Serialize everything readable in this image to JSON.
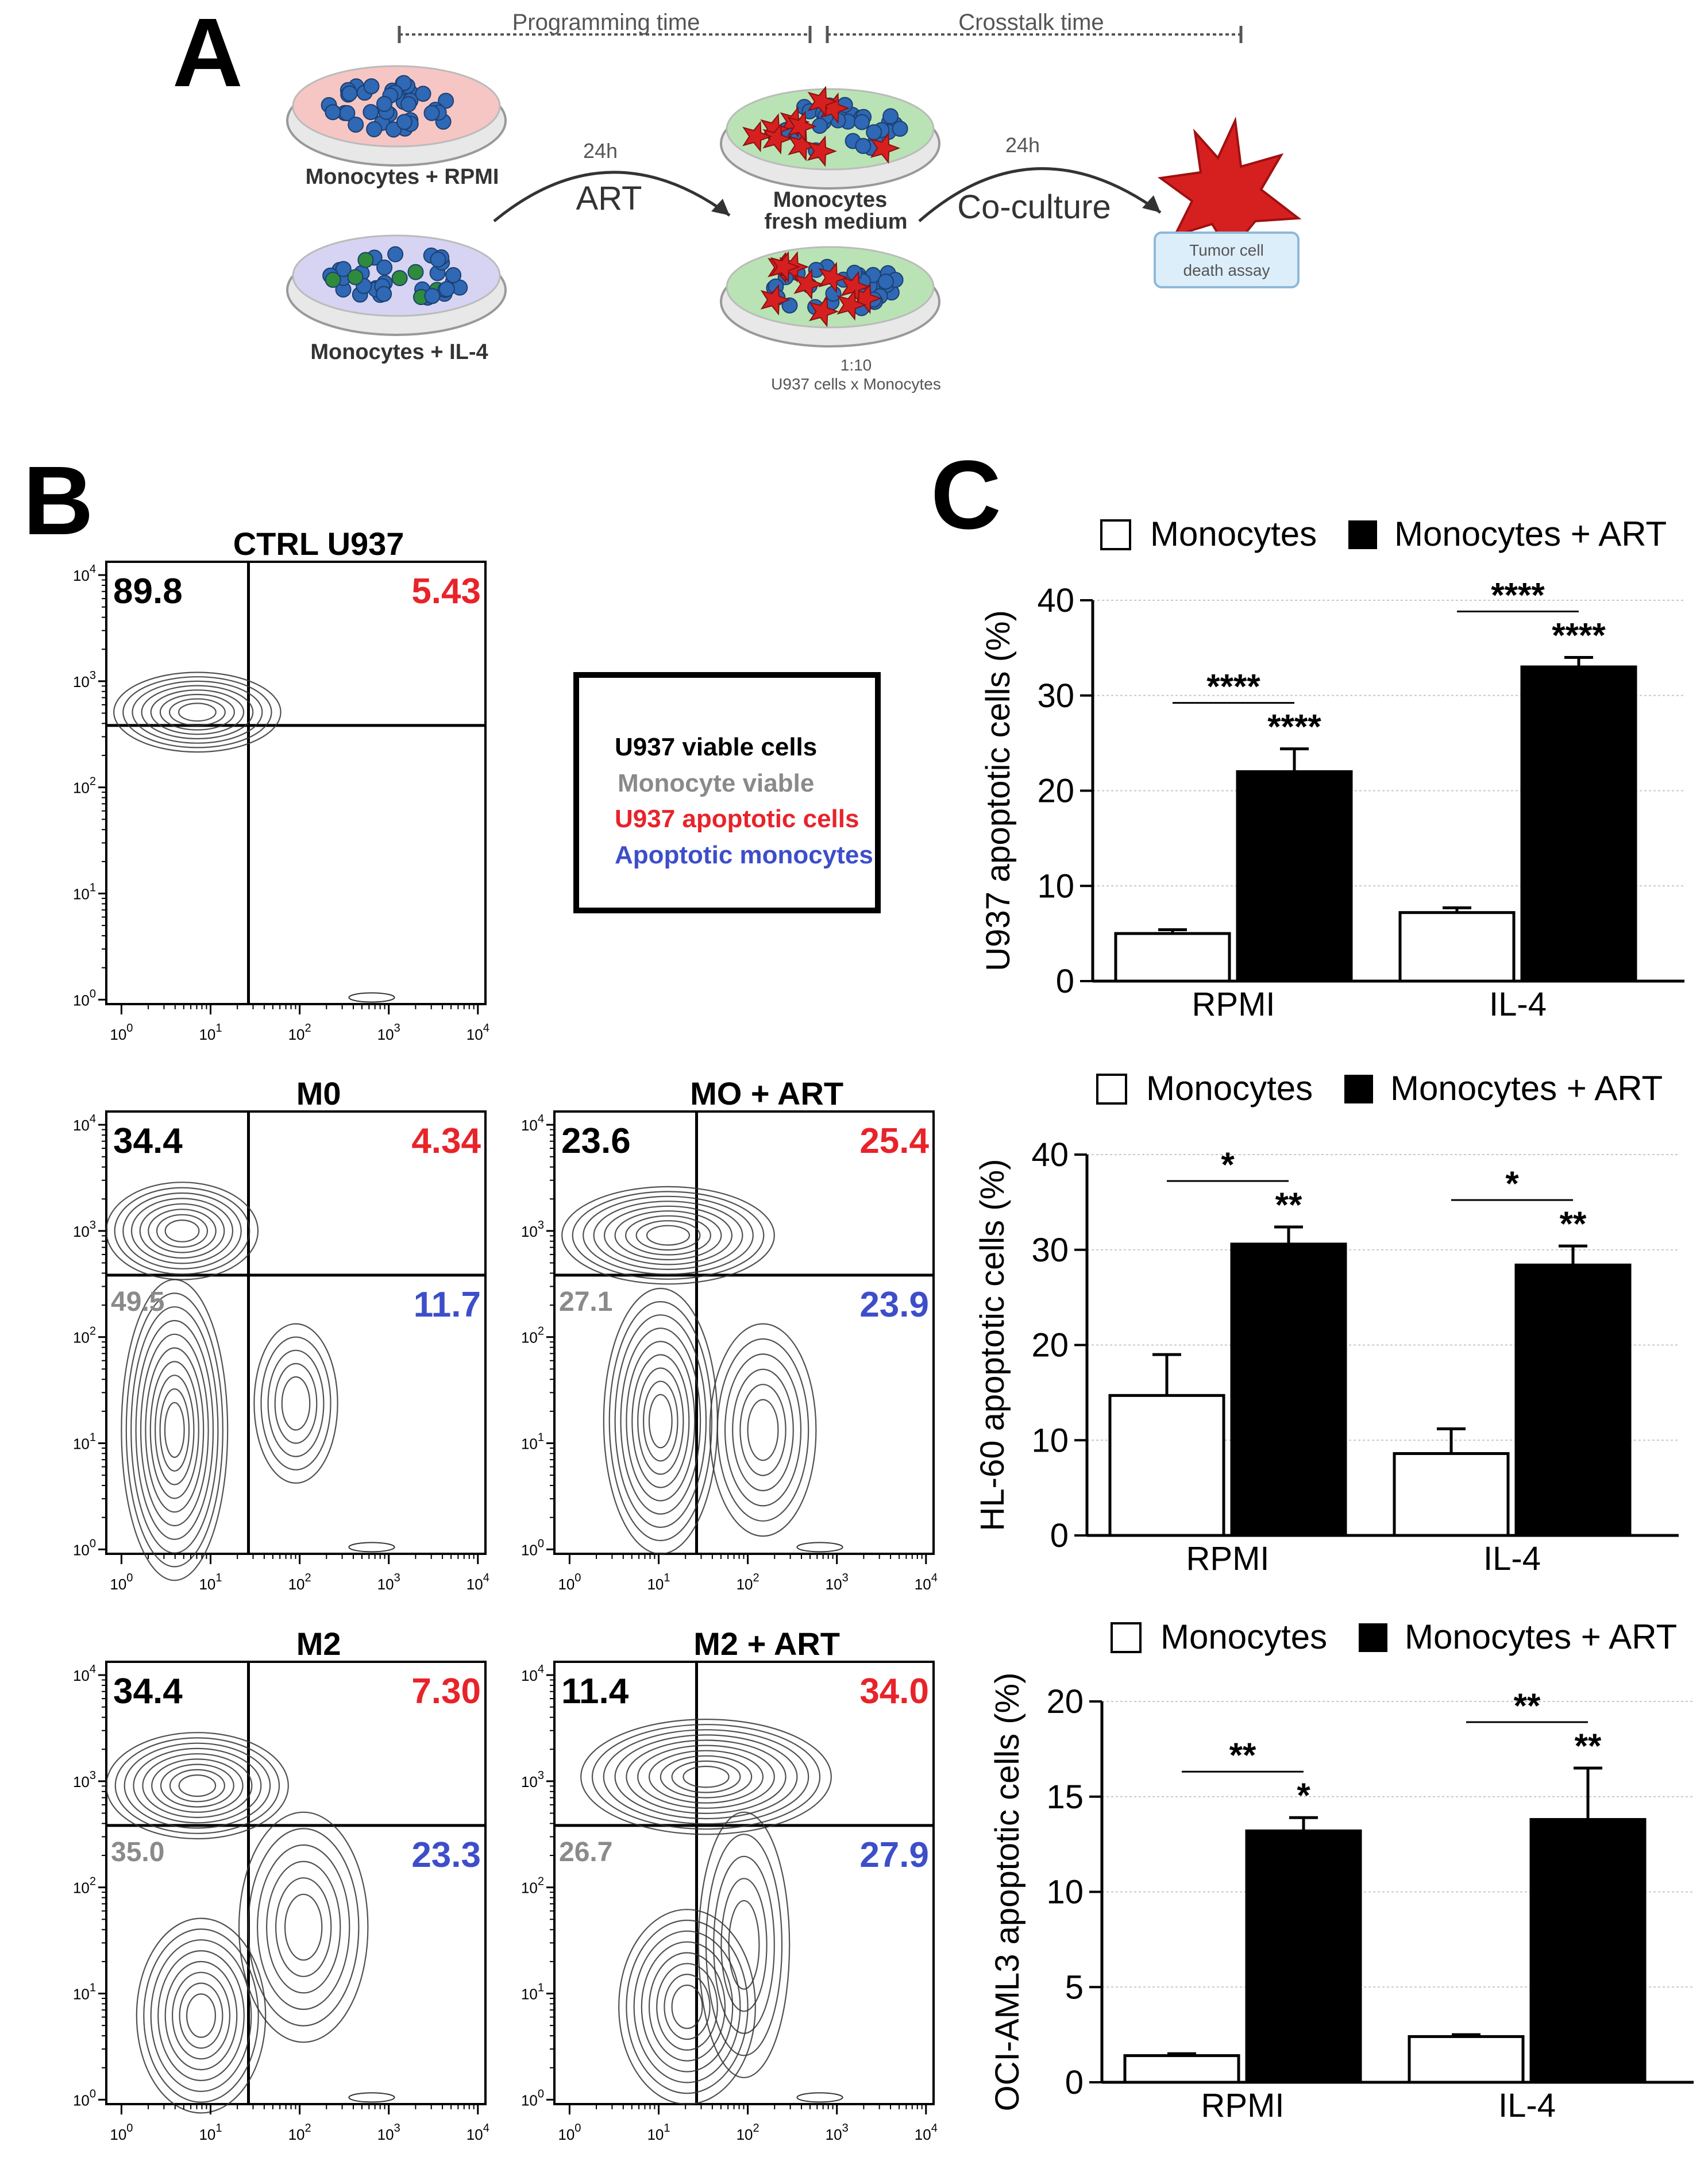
{
  "panel_labels": {
    "a": "A",
    "b": "B",
    "c": "C"
  },
  "panel_a": {
    "programming_time": "Programming time",
    "crosstalk_time": "Crosstalk time",
    "dish_rpmi": "Monocytes + RPMI",
    "dish_il4": "Monocytes + IL-4",
    "hours_1": "24h",
    "treatment": "ART",
    "fresh_medium_1": "Monocytes",
    "fresh_medium_2": "fresh medium",
    "hours_2": "24h",
    "coculture": "Co-culture",
    "ratio": "1:10",
    "ratio_desc": "U937 cells x Monocytes",
    "assay_1": "Tumor cell",
    "assay_2": "death assay",
    "colors": {
      "rpmi_dish": "#f6c6c4",
      "il4_dish": "#d6d4f2",
      "fresh_dish": "#b9e3b4",
      "cell_blue": "#2f68b4",
      "cell_red": "#d62020"
    }
  },
  "panel_b": {
    "legend": {
      "viable": "U937 viable cells",
      "mono_viable": "Monocyte viable",
      "apoptotic": "U937 apoptotic cells",
      "apoptotic_mono": "Apoptotic monocytes"
    },
    "colors": {
      "viable": "#000000",
      "mono_viable": "#8a8a8a",
      "apoptotic": "#e8232a",
      "apoptotic_mono": "#3d4ec9"
    },
    "axis_ticks": {
      "base": "10",
      "exponents": [
        "0",
        "1",
        "2",
        "3",
        "4"
      ]
    },
    "plots": [
      {
        "title": "CTRL U937",
        "ul": "89.8",
        "ur": "5.43",
        "ll": "",
        "lr": ""
      },
      {
        "title": "M0",
        "ul": "34.4",
        "ur": "4.34",
        "ll": "49.5",
        "lr": "11.7"
      },
      {
        "title": "MO + ART",
        "ul": "23.6",
        "ur": "25.4",
        "ll": "27.1",
        "lr": "23.9"
      },
      {
        "title": "M2",
        "ul": "34.4",
        "ur": "7.30",
        "ll": "35.0",
        "lr": "23.3"
      },
      {
        "title": "M2 + ART",
        "ul": "11.4",
        "ur": "34.0",
        "ll": "26.7",
        "lr": "27.9"
      }
    ]
  },
  "legend_c": {
    "series1": "Monocytes",
    "series2": "Monocytes + ART"
  },
  "chart_data": [
    {
      "type": "bar",
      "title": "",
      "categories": [
        "RPMI",
        "IL-4"
      ],
      "ylabel": "U937 apoptotic cells (%)",
      "xlabel": "",
      "ylim": [
        0,
        40
      ],
      "yticks": [
        0,
        10,
        20,
        30,
        40
      ],
      "series": [
        {
          "name": "Monocytes",
          "values": [
            5,
            7.2
          ],
          "errors": [
            0.4,
            0.5
          ],
          "color": "#ffffff"
        },
        {
          "name": "Monocytes + ART",
          "values": [
            22,
            33
          ],
          "errors": [
            2.4,
            1.0
          ],
          "color": "#000000"
        }
      ],
      "annotations": [
        {
          "category": 0,
          "bracket": "****",
          "bar": "****"
        },
        {
          "category": 1,
          "bracket": "****",
          "bar": "****"
        }
      ]
    },
    {
      "type": "bar",
      "title": "",
      "categories": [
        "RPMI",
        "IL-4"
      ],
      "ylabel": "HL-60 apoptotic cells (%)",
      "xlabel": "",
      "ylim": [
        0,
        40
      ],
      "yticks": [
        0,
        10,
        20,
        30,
        40
      ],
      "series": [
        {
          "name": "Monocytes",
          "values": [
            14.7,
            8.6
          ],
          "errors": [
            4.3,
            2.6
          ],
          "color": "#ffffff"
        },
        {
          "name": "Monocytes + ART",
          "values": [
            30.6,
            28.4
          ],
          "errors": [
            1.8,
            2.0
          ],
          "color": "#000000"
        }
      ],
      "annotations": [
        {
          "category": 0,
          "bracket": "*",
          "bar": "**"
        },
        {
          "category": 1,
          "bracket": "*",
          "bar": "**"
        }
      ]
    },
    {
      "type": "bar",
      "title": "",
      "categories": [
        "RPMI",
        "IL-4"
      ],
      "ylabel": "OCI-AML3 apoptotic cells (%)",
      "xlabel": "",
      "ylim": [
        0,
        20
      ],
      "yticks": [
        0,
        5,
        10,
        15,
        20
      ],
      "series": [
        {
          "name": "Monocytes",
          "values": [
            1.4,
            2.4
          ],
          "errors": [
            0.1,
            0.1
          ],
          "color": "#ffffff"
        },
        {
          "name": "Monocytes + ART",
          "values": [
            13.2,
            13.8
          ],
          "errors": [
            0.7,
            2.7
          ],
          "color": "#000000"
        }
      ],
      "annotations": [
        {
          "category": 0,
          "bracket": "**",
          "bar": "*"
        },
        {
          "category": 1,
          "bracket": "**",
          "bar": "**"
        }
      ]
    }
  ]
}
